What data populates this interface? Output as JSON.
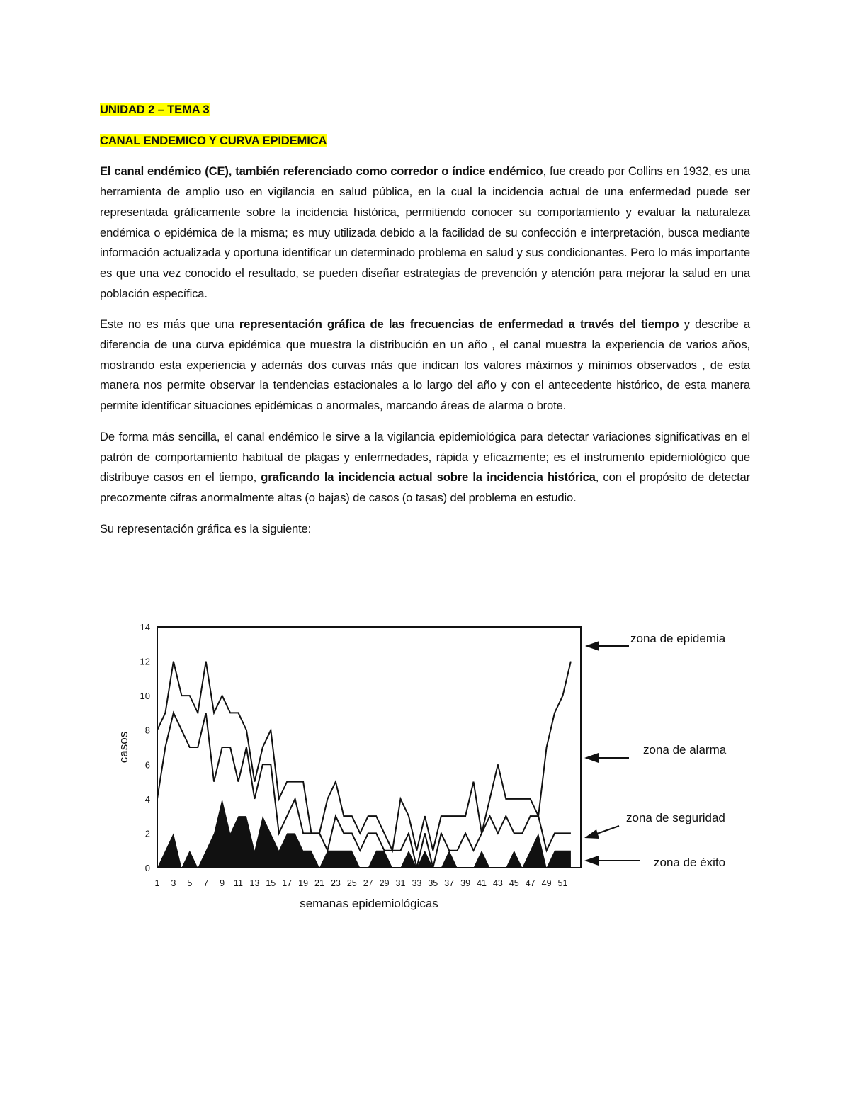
{
  "heading": {
    "unit": "UNIDAD 2 – TEMA 3",
    "topic": "CANAL ENDEMICO Y CURVA EPIDEMICA",
    "highlight_color": "#ffff00"
  },
  "paragraphs": [
    [
      {
        "text": "El canal endémico (CE), también referenciado como corredor o índice endémico",
        "bold": true
      },
      {
        "text": ", fue creado por Collins en 1932, es una herramienta de amplio uso en vigilancia en salud pública, en la cual la incidencia actual de una enfermedad puede ser representada gráficamente sobre la incidencia histórica, permitiendo conocer su comportamiento y evaluar la naturaleza endémica o epidémica de la misma; es muy utilizada debido a la facilidad de su confección e interpretación, busca mediante información actualizada y oportuna identificar un determinado problema en salud y sus condicionantes. Pero lo más importante es que una vez conocido el resultado, se pueden diseñar estrategias de prevención y atención para mejorar la salud en una población específica.",
        "bold": false
      }
    ],
    [
      {
        "text": "Este no es más que una ",
        "bold": false
      },
      {
        "text": "representación gráfica de las frecuencias de enfermedad a través del tiempo",
        "bold": true
      },
      {
        "text": " y describe a diferencia de una curva epidémica que muestra la distribución en un año , el canal muestra la experiencia de varios años, mostrando esta experiencia y además dos curvas más que indican los valores máximos y mínimos observados , de esta manera nos permite observar la tendencias estacionales a lo largo del año y con el antecedente histórico, de esta manera permite identificar situaciones epidémicas o anormales, marcando áreas de alarma o brote.",
        "bold": false
      }
    ],
    [
      {
        "text": "De forma más sencilla, el canal endémico le sirve a la vigilancia epidemiológica para detectar variaciones significativas en el patrón de comportamiento habitual de plagas y enfermedades, rápida y eficazmente; es el instrumento epidemiológico que distribuye casos en el tiempo, ",
        "bold": false
      },
      {
        "text": "graficando la incidencia actual sobre la incidencia histórica",
        "bold": true
      },
      {
        "text": ", con el propósito de detectar precozmente cifras anormalmente altas (o bajas) de casos (o tasas) del problema en estudio.",
        "bold": false
      }
    ],
    [
      {
        "text": "Su representación gráfica es la siguiente:",
        "bold": false
      }
    ]
  ],
  "chart_data": {
    "type": "line",
    "xlabel": "semanas epidemiológicas",
    "ylabel": "casos",
    "ylim": [
      0,
      14
    ],
    "yticks": [
      "0",
      "2",
      "4",
      "6",
      "8",
      "10",
      "12",
      "14"
    ],
    "xticks": [
      "1",
      "3",
      "5",
      "7",
      "9",
      "11",
      "13",
      "15",
      "17",
      "19",
      "21",
      "23",
      "25",
      "27",
      "29",
      "31",
      "33",
      "35",
      "37",
      "39",
      "41",
      "43",
      "45",
      "47",
      "49",
      "51"
    ],
    "x": [
      1,
      2,
      3,
      4,
      5,
      6,
      7,
      8,
      9,
      10,
      11,
      12,
      13,
      14,
      15,
      16,
      17,
      18,
      19,
      20,
      21,
      22,
      23,
      24,
      25,
      26,
      27,
      28,
      29,
      30,
      31,
      32,
      33,
      34,
      35,
      36,
      37,
      38,
      39,
      40,
      41,
      42,
      43,
      44,
      45,
      46,
      47,
      48,
      49,
      50,
      51,
      52
    ],
    "series": [
      {
        "values": [
          8,
          9,
          12,
          10,
          10,
          9,
          12,
          9,
          10,
          9,
          9,
          8,
          5,
          7,
          8,
          4,
          5,
          5,
          5,
          2,
          2,
          4,
          5,
          3,
          3,
          2,
          3,
          3,
          2,
          1,
          4,
          3,
          1,
          3,
          1,
          3,
          3,
          3,
          3,
          5,
          2,
          4,
          6,
          4,
          4,
          4,
          4,
          3,
          7,
          9,
          10,
          12
        ]
      },
      {
        "values": [
          4,
          7,
          9,
          8,
          7,
          7,
          9,
          5,
          7,
          7,
          5,
          7,
          4,
          6,
          6,
          2,
          3,
          4,
          2,
          2,
          2,
          1,
          3,
          2,
          2,
          1,
          2,
          2,
          1,
          1,
          1,
          2,
          0,
          2,
          0,
          2,
          1,
          1,
          2,
          1,
          2,
          3,
          2,
          3,
          2,
          2,
          3,
          3,
          1,
          2,
          2,
          2
        ]
      },
      {
        "values": [
          0,
          1,
          2,
          0,
          1,
          0,
          1,
          2,
          4,
          2,
          3,
          3,
          1,
          3,
          2,
          1,
          2,
          2,
          1,
          1,
          0,
          1,
          1,
          1,
          1,
          0,
          0,
          1,
          1,
          0,
          0,
          1,
          0,
          1,
          0,
          0,
          1,
          0,
          0,
          0,
          1,
          0,
          0,
          0,
          1,
          0,
          1,
          2,
          0,
          1,
          1,
          1
        ],
        "filled": true
      }
    ],
    "annotations": [
      "zona de epidemia",
      "zona de alarma",
      "zona de seguridad",
      "zona de éxito"
    ],
    "grid": false,
    "legend": "right (arrow labels)"
  }
}
